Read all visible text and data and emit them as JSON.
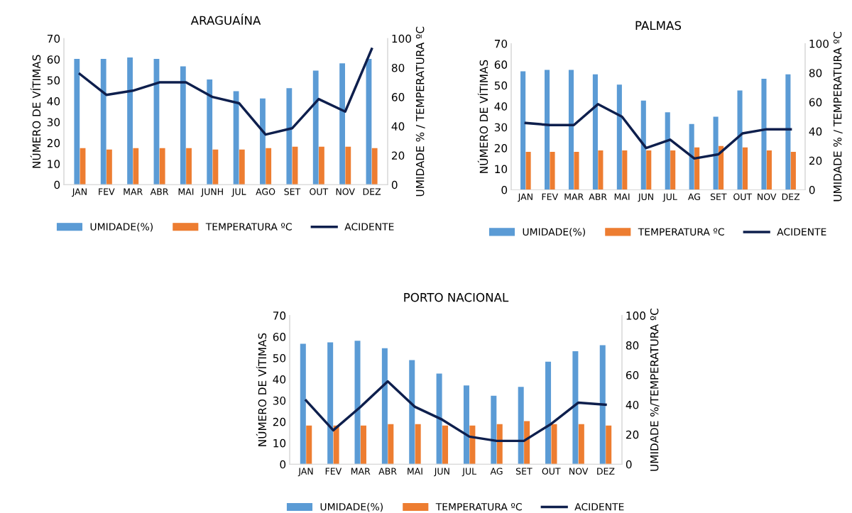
{
  "chart_data": [
    {
      "type": "bar",
      "title": "ARAGUAÍNA",
      "categories": [
        "JAN",
        "FEV",
        "MAR",
        "ABR",
        "MAI",
        "JUNH",
        "JUL",
        "AGO",
        "SET",
        "OUT",
        "NOV",
        "DEZ"
      ],
      "ylabel": "NÚMERO DE VÍTIMAS",
      "y2label": "UMIDADE % / TEMPERATURA ºC",
      "ylim": [
        0,
        70
      ],
      "yticks": [
        0,
        10,
        20,
        30,
        40,
        50,
        60,
        70
      ],
      "y2lim": [
        0,
        100
      ],
      "y2ticks": [
        0,
        20,
        40,
        60,
        80,
        100
      ],
      "legend": "bottom",
      "grid": false,
      "series": [
        {
          "name": "UMIDADE(%)",
          "axis": "y2",
          "color": "#5b9bd5",
          "values": [
            86,
            86,
            87,
            86,
            81,
            72,
            64,
            59,
            66,
            78,
            83,
            86
          ]
        },
        {
          "name": "TEMPERATURA ºC",
          "axis": "y2",
          "color": "#ed7d31",
          "values": [
            25,
            24,
            25,
            25,
            25,
            24,
            24,
            25,
            26,
            26,
            26,
            25
          ]
        },
        {
          "name": "ACIDENTE",
          "type": "line",
          "axis": "y",
          "color": "#0e1f4d",
          "values": [
            53,
            43,
            45,
            49,
            49,
            42,
            39,
            24,
            27,
            41,
            35,
            65
          ]
        }
      ]
    },
    {
      "type": "bar",
      "title": "PALMAS",
      "categories": [
        "JAN",
        "FEV",
        "MAR",
        "ABR",
        "MAI",
        "JUN",
        "JUL",
        "AG",
        "SET",
        "OUT",
        "NOV",
        "DEZ"
      ],
      "ylabel": "NÚMERO DE VÍTIMAS",
      "y2label": "UMIDADE % / TEMPERATURA ºC",
      "ylim": [
        0,
        70
      ],
      "yticks": [
        0,
        10,
        20,
        30,
        40,
        50,
        60,
        70
      ],
      "y2lim": [
        0,
        100
      ],
      "y2ticks": [
        0,
        20,
        40,
        60,
        80,
        100
      ],
      "legend": "bottom",
      "grid": false,
      "series": [
        {
          "name": "UMIDADE(%)",
          "axis": "y2",
          "color": "#5b9bd5",
          "values": [
            81,
            82,
            82,
            79,
            72,
            61,
            53,
            45,
            50,
            68,
            76,
            79
          ]
        },
        {
          "name": "TEMPERATURA ºC",
          "axis": "y2",
          "color": "#ed7d31",
          "values": [
            26,
            26,
            26,
            27,
            27,
            27,
            27,
            29,
            30,
            29,
            27,
            26
          ]
        },
        {
          "name": "ACIDENTE",
          "type": "line",
          "axis": "y",
          "color": "#0e1f4d",
          "values": [
            32,
            31,
            31,
            41,
            35,
            20,
            24,
            15,
            17,
            27,
            29,
            29
          ]
        }
      ]
    },
    {
      "type": "bar",
      "title": "PORTO NACIONAL",
      "categories": [
        "JAN",
        "FEV",
        "MAR",
        "ABR",
        "MAI",
        "JUN",
        "JUL",
        "AG",
        "SET",
        "OUT",
        "NOV",
        "DEZ"
      ],
      "ylabel": "NÚMERO DE VÍTIMAS",
      "y2label": "UMIDADE %/TEMPERATURA ºC",
      "ylim": [
        0,
        70
      ],
      "yticks": [
        0,
        10,
        20,
        30,
        40,
        50,
        60,
        70
      ],
      "y2lim": [
        0,
        100
      ],
      "y2ticks": [
        0,
        20,
        40,
        60,
        80,
        100
      ],
      "legend": "bottom",
      "grid": false,
      "series": [
        {
          "name": "UMIDADE(%)",
          "axis": "y2",
          "color": "#5b9bd5",
          "values": [
            81,
            82,
            83,
            78,
            70,
            61,
            53,
            46,
            52,
            69,
            76,
            80
          ]
        },
        {
          "name": "TEMPERATURA ºC",
          "axis": "y2",
          "color": "#ed7d31",
          "values": [
            26,
            26,
            26,
            27,
            27,
            26,
            26,
            27,
            29,
            27,
            27,
            26
          ]
        },
        {
          "name": "ACIDENTE",
          "type": "line",
          "axis": "y",
          "color": "#0e1f4d",
          "values": [
            30,
            16,
            27,
            39,
            27,
            21,
            13,
            11,
            11,
            19,
            29,
            28
          ]
        }
      ]
    }
  ]
}
